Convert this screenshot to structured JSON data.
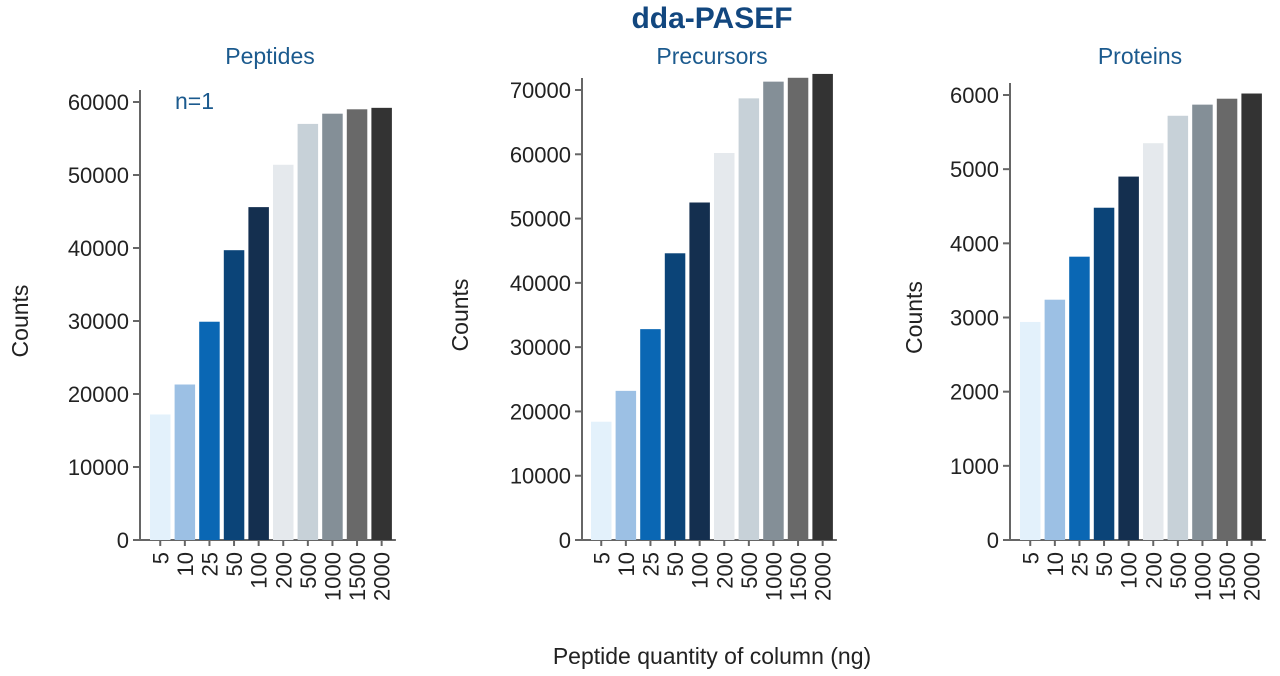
{
  "title": "dda-PASEF",
  "xlabel": "Peptide quantity of column (ng)",
  "colors": [
    "#e3f1fb",
    "#9cc0e4",
    "#0a67b4",
    "#0b4478",
    "#142f4f",
    "#e5e9ed",
    "#c7d1d8",
    "#848f97",
    "#696969",
    "#333333"
  ],
  "chart_data": [
    {
      "type": "bar",
      "title": "Peptides",
      "annotation": "n=1",
      "ylabel": "Counts",
      "categories": [
        "5",
        "10",
        "25",
        "50",
        "100",
        "200",
        "500",
        "1000",
        "1500",
        "2000"
      ],
      "values": [
        17200,
        21300,
        29900,
        39700,
        45600,
        51400,
        57000,
        58400,
        59000,
        59200
      ],
      "ylim": [
        0,
        60000
      ],
      "yticks": [
        0,
        10000,
        20000,
        30000,
        40000,
        50000,
        60000
      ],
      "ytick_labels": [
        "0",
        "10000",
        "20000",
        "30000",
        "40000",
        "50000",
        "60000"
      ],
      "legend": false
    },
    {
      "type": "bar",
      "title": "Precursors",
      "annotation": "",
      "ylabel": "Counts",
      "categories": [
        "5",
        "10",
        "25",
        "50",
        "100",
        "200",
        "500",
        "1000",
        "1500",
        "2000"
      ],
      "values": [
        18400,
        23200,
        32800,
        44600,
        52500,
        60200,
        68700,
        71300,
        71900,
        72500
      ],
      "ylim": [
        0,
        70000
      ],
      "yticks": [
        0,
        10000,
        20000,
        30000,
        40000,
        50000,
        60000,
        70000
      ],
      "ytick_labels": [
        "0",
        "10000",
        "20000",
        "30000",
        "40000",
        "50000",
        "60000",
        "70000"
      ],
      "legend": false
    },
    {
      "type": "bar",
      "title": "Proteins",
      "annotation": "",
      "ylabel": "Counts",
      "categories": [
        "5",
        "10",
        "25",
        "50",
        "100",
        "200",
        "500",
        "1000",
        "1500",
        "2000"
      ],
      "values": [
        2940,
        3240,
        3820,
        4480,
        4900,
        5350,
        5720,
        5870,
        5950,
        6020
      ],
      "ylim": [
        0,
        6000
      ],
      "yticks": [
        0,
        1000,
        2000,
        3000,
        4000,
        5000,
        6000
      ],
      "ytick_labels": [
        "0",
        "1000",
        "2000",
        "3000",
        "4000",
        "5000",
        "6000"
      ],
      "legend": false
    }
  ]
}
